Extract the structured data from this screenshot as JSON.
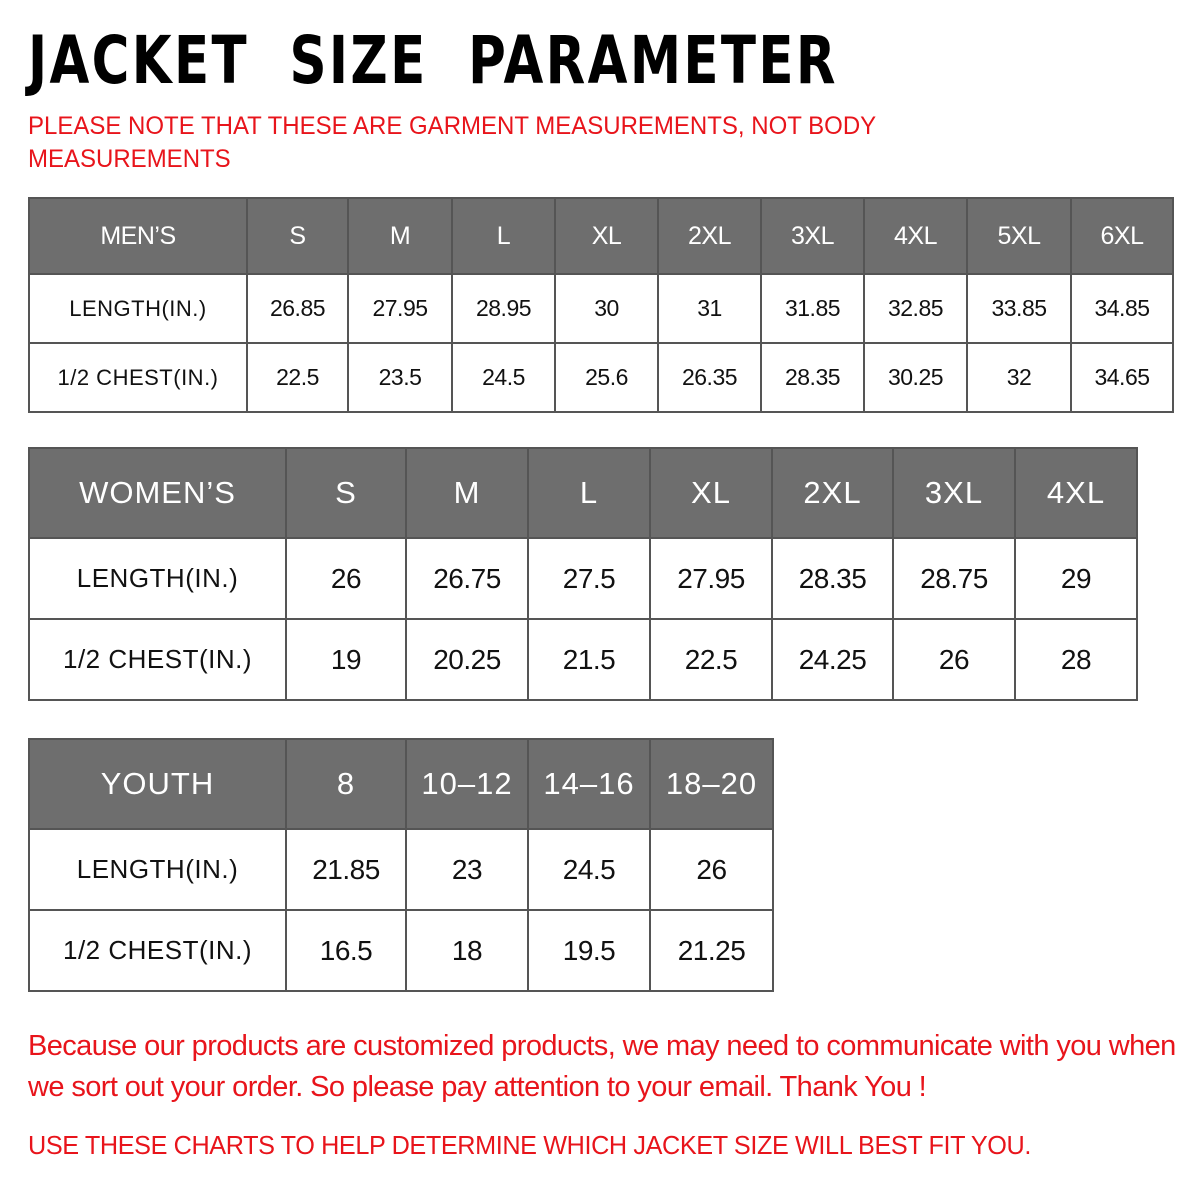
{
  "title": "JACKET  SIZE  PARAMETER",
  "note": "PLEASE NOTE THAT THESE ARE GARMENT MEASUREMENTS, NOT BODY MEASUREMENTS",
  "colors": {
    "header_bg": "#6e6e6e",
    "accent_red": "#e8141b"
  },
  "tables": {
    "men": {
      "header": [
        "MEN’S",
        "S",
        "M",
        "L",
        "XL",
        "2XL",
        "3XL",
        "4XL",
        "5XL",
        "6XL"
      ],
      "rows": [
        [
          "LENGTH(IN.)",
          "26.85",
          "27.95",
          "28.95",
          "30",
          "31",
          "31.85",
          "32.85",
          "33.85",
          "34.85"
        ],
        [
          "1/2 CHEST(IN.)",
          "22.5",
          "23.5",
          "24.5",
          "25.6",
          "26.35",
          "28.35",
          "30.25",
          "32",
          "34.65"
        ]
      ]
    },
    "women": {
      "header": [
        "WOMEN’S",
        "S",
        "M",
        "L",
        "XL",
        "2XL",
        "3XL",
        "4XL"
      ],
      "rows": [
        [
          "LENGTH(IN.)",
          "26",
          "26.75",
          "27.5",
          "27.95",
          "28.35",
          "28.75",
          "29"
        ],
        [
          "1/2 CHEST(IN.)",
          "19",
          "20.25",
          "21.5",
          "22.5",
          "24.25",
          "26",
          "28"
        ]
      ]
    },
    "youth": {
      "header": [
        "YOUTH",
        "8",
        "10–12",
        "14–16",
        "18–20"
      ],
      "rows": [
        [
          "LENGTH(IN.)",
          "21.85",
          "23",
          "24.5",
          "26"
        ],
        [
          "1/2 CHEST(IN.)",
          "16.5",
          "18",
          "19.5",
          "21.25"
        ]
      ]
    }
  },
  "footer": {
    "message": "Because our products are customized products, we may need to communicate with you when we sort out your order. So please pay attention to your email. Thank You !",
    "advice": "USE THESE CHARTS TO HELP DETERMINE WHICH JACKET SIZE WILL BEST FIT YOU."
  }
}
